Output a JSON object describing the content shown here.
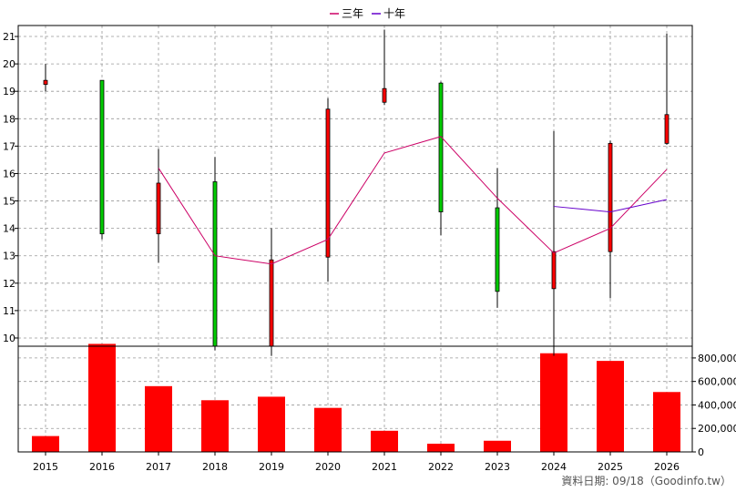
{
  "chart_data": {
    "type": "candlestick",
    "legend": {
      "placement": "top-center",
      "items": [
        {
          "label": "三年",
          "color": "#cc0066"
        },
        {
          "label": "十年",
          "color": "#6600cc"
        }
      ]
    },
    "years": [
      "2015",
      "2016",
      "2017",
      "2018",
      "2019",
      "2020",
      "2021",
      "2022",
      "2023",
      "2024",
      "2025",
      "2026"
    ],
    "price_axis": {
      "ylim": [
        9.7,
        21.4
      ],
      "ticks": [
        10,
        11,
        12,
        13,
        14,
        15,
        16,
        17,
        18,
        19,
        20,
        21
      ]
    },
    "candles": [
      {
        "year": "2015",
        "open": 19.4,
        "close": 19.25,
        "high": 20.0,
        "low": 19.0,
        "color": "red"
      },
      {
        "year": "2016",
        "open": 19.4,
        "close": 13.8,
        "high": 19.4,
        "low": 13.6,
        "color": "green"
      },
      {
        "year": "2017",
        "open": 13.8,
        "close": 15.65,
        "high": 16.9,
        "low": 12.75,
        "color": "red"
      },
      {
        "year": "2018",
        "open": 15.7,
        "close": 9.7,
        "high": 16.6,
        "low": 9.55,
        "color": "green"
      },
      {
        "year": "2019",
        "open": 9.7,
        "close": 12.85,
        "high": 14.0,
        "low": 9.35,
        "color": "red"
      },
      {
        "year": "2020",
        "open": 12.95,
        "close": 18.35,
        "high": 18.75,
        "low": 12.05,
        "color": "red"
      },
      {
        "year": "2021",
        "open": 18.6,
        "close": 19.1,
        "high": 21.25,
        "low": 18.5,
        "color": "red"
      },
      {
        "year": "2022",
        "open": 19.3,
        "close": 14.6,
        "high": 19.35,
        "low": 13.75,
        "color": "green"
      },
      {
        "year": "2023",
        "open": 14.75,
        "close": 11.7,
        "high": 16.2,
        "low": 11.1,
        "color": "green"
      },
      {
        "year": "2024",
        "open": 11.8,
        "close": 13.15,
        "high": 17.55,
        "low": 9.35,
        "color": "red"
      },
      {
        "year": "2025",
        "open": 13.15,
        "close": 17.1,
        "high": 17.2,
        "low": 11.45,
        "color": "red"
      },
      {
        "year": "2026",
        "open": 17.1,
        "close": 18.15,
        "high": 21.1,
        "low": 17.05,
        "color": "red"
      }
    ],
    "series": [
      {
        "name": "三年",
        "color": "#cc0066",
        "x": [
          "2017",
          "2018",
          "2019",
          "2020",
          "2021",
          "2022",
          "2023",
          "2024",
          "2025",
          "2026"
        ],
        "values": [
          16.2,
          13.0,
          12.7,
          13.6,
          16.75,
          17.35,
          15.1,
          13.1,
          14.0,
          16.15
        ]
      },
      {
        "name": "十年",
        "color": "#6600cc",
        "x": [
          "2024",
          "2025",
          "2026"
        ],
        "values": [
          14.8,
          14.6,
          15.05
        ]
      }
    ],
    "volume_axis": {
      "ylim": [
        0,
        900000
      ],
      "ticks": [
        0,
        200000,
        400000,
        600000,
        800000
      ],
      "tick_labels": [
        "0",
        "200,000",
        "400,000",
        "600,000",
        "800,000"
      ]
    },
    "volume": [
      {
        "year": "2015",
        "value": 135000
      },
      {
        "year": "2016",
        "value": 920000
      },
      {
        "year": "2017",
        "value": 560000
      },
      {
        "year": "2018",
        "value": 440000
      },
      {
        "year": "2019",
        "value": 470000
      },
      {
        "year": "2020",
        "value": 375000
      },
      {
        "year": "2021",
        "value": 180000
      },
      {
        "year": "2022",
        "value": 70000
      },
      {
        "year": "2023",
        "value": 95000
      },
      {
        "year": "2024",
        "value": 840000
      },
      {
        "year": "2025",
        "value": 775000
      },
      {
        "year": "2026",
        "value": 510000
      }
    ],
    "grid": true,
    "footer": "資料日期: 09/18（Goodinfo.tw）"
  },
  "colors": {
    "red": "#ff0000",
    "green": "#00cc00",
    "grid": "#999999"
  }
}
